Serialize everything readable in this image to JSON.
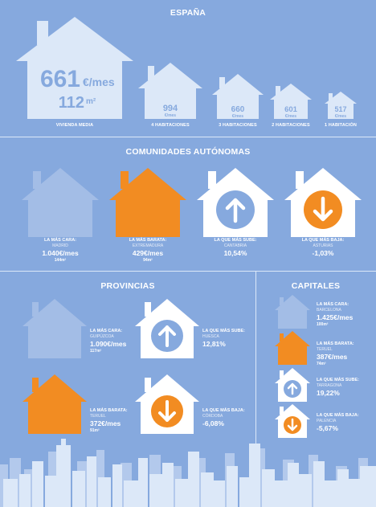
{
  "espana": {
    "title": "ESPAÑA",
    "main": {
      "price": "661",
      "price_unit": "€/mes",
      "area": "112",
      "area_unit": "m²",
      "label": "VIVIENDA MEDIA"
    },
    "rooms": [
      {
        "value": "994",
        "unit": "€/mes",
        "label": "4 HABITACIONES"
      },
      {
        "value": "660",
        "unit": "€/mes",
        "label": "3 HABITACIONES"
      },
      {
        "value": "601",
        "unit": "€/mes",
        "label": "2 HABITACIONES"
      },
      {
        "value": "517",
        "unit": "€/mes",
        "label": "1 HABITACIÓN"
      }
    ]
  },
  "comunidades": {
    "title": "COMUNIDADES AUTÓNOMAS",
    "items": [
      {
        "title": "LA MÁS CARA:",
        "place": "MADRID",
        "value": "1.040€/mes",
        "extra": "144m²"
      },
      {
        "title": "LA MÁS BARATA:",
        "place": "EXTREMADURA",
        "value": "429€/mes",
        "extra": "94m²"
      },
      {
        "title": "LA QUE MÁS SUBE:",
        "place": "CANTABRIA",
        "value": "10,54%",
        "extra": ""
      },
      {
        "title": "LA QUE MÁS BAJA:",
        "place": "ASTURIAS",
        "value": "-1,03%",
        "extra": ""
      }
    ]
  },
  "provincias": {
    "title": "PROVINCIAS",
    "items": [
      {
        "title": "LA MÁS CARA:",
        "place": "GUIPÚZCOA",
        "value": "1.090€/mes",
        "extra": "117m²"
      },
      {
        "title": "LA QUE MÁS SUBE:",
        "place": "HUESCA",
        "value": "12,81%",
        "extra": ""
      },
      {
        "title": "LA MÁS BARATA:",
        "place": "TERUEL",
        "value": "372€/mes",
        "extra": "91m²"
      },
      {
        "title": "LA QUE MÁS BAJA:",
        "place": "CÓRDOBA",
        "value": "-6,08%",
        "extra": ""
      }
    ]
  },
  "capitales": {
    "title": "CAPITALES",
    "items": [
      {
        "title": "LA MÁS CARA:",
        "place": "BARCELONA",
        "value": "1.425€/mes",
        "extra": "100m²"
      },
      {
        "title": "LA MÁS BARATA:",
        "place": "TERUEL",
        "value": "387€/mes",
        "extra": "74m²"
      },
      {
        "title": "LA QUE MÁS SUBE:",
        "place": "TARRAGONA",
        "value": "19,22%",
        "extra": ""
      },
      {
        "title": "LA QUE MÁS BAJA:",
        "place": "PALENCIA",
        "value": "-5,67%",
        "extra": ""
      }
    ]
  },
  "colors": {
    "background": "#86a9de",
    "white": "#ffffff",
    "orange": "#f28c22",
    "light_house": "#a3bde6",
    "skyline": "#dce8f8"
  }
}
